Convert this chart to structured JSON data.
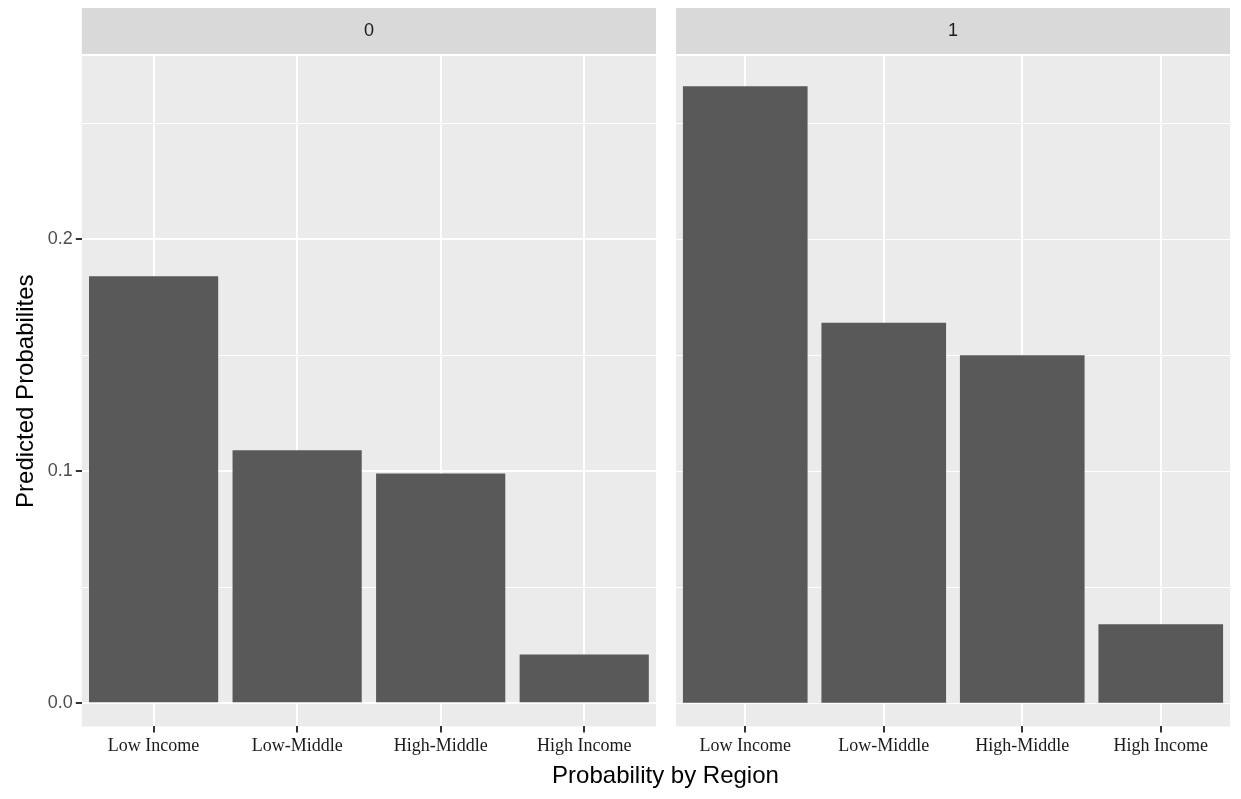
{
  "chart_data": [
    {
      "type": "bar",
      "title": "0",
      "ylabel": "Predicted Probabilites",
      "xlabel": "Probability by Region",
      "categories": [
        "Low Income",
        "Low-Middle",
        "High-Middle",
        "High Income"
      ],
      "values": [
        0.184,
        0.109,
        0.099,
        0.021
      ],
      "color": "#595959",
      "ylim": [
        -0.01,
        0.279
      ],
      "yticks": [
        {
          "value": 0,
          "label": "0.0"
        },
        {
          "value": 0.05,
          "label": null
        },
        {
          "value": 0.1,
          "label": "0.1"
        },
        {
          "value": 0.15,
          "label": null
        },
        {
          "value": 0.2,
          "label": "0.2"
        },
        {
          "value": 0.25,
          "label": null
        }
      ],
      "grid": true
    },
    {
      "type": "bar",
      "title": "1",
      "categories": [
        "Low Income",
        "Low-Middle",
        "High-Middle",
        "High Income"
      ],
      "values": [
        0.266,
        0.164,
        0.15,
        0.034
      ],
      "color": "#595959",
      "ylim": [
        -0.01,
        0.279
      ],
      "yticks": [
        {
          "value": 0,
          "label": null
        },
        {
          "value": 0.05,
          "label": null
        },
        {
          "value": 0.1,
          "label": null
        },
        {
          "value": 0.15,
          "label": null
        },
        {
          "value": 0.2,
          "label": null
        },
        {
          "value": 0.25,
          "label": null
        }
      ],
      "grid": true,
      "tick_labels": "x"
    }
  ]
}
